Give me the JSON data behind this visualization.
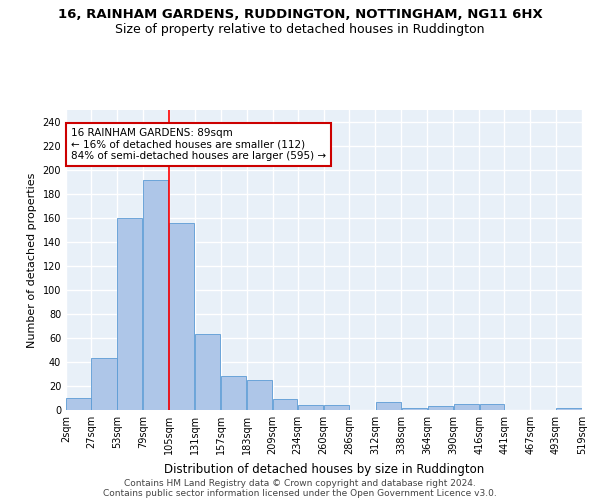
{
  "title": "16, RAINHAM GARDENS, RUDDINGTON, NOTTINGHAM, NG11 6HX",
  "subtitle": "Size of property relative to detached houses in Ruddington",
  "xlabel": "Distribution of detached houses by size in Ruddington",
  "ylabel": "Number of detached properties",
  "bar_color": "#aec6e8",
  "bar_edge_color": "#5b9bd5",
  "background_color": "#e8f0f8",
  "grid_color": "#ffffff",
  "annotation_box_color": "#cc0000",
  "annotation_line1": "16 RAINHAM GARDENS: 89sqm",
  "annotation_line2": "← 16% of detached houses are smaller (112)",
  "annotation_line3": "84% of semi-detached houses are larger (595) →",
  "bin_edges": [
    2,
    27,
    53,
    79,
    105,
    131,
    157,
    183,
    209,
    234,
    260,
    286,
    312,
    338,
    364,
    390,
    416,
    441,
    467,
    493,
    519
  ],
  "bin_labels": [
    "2sqm",
    "27sqm",
    "53sqm",
    "79sqm",
    "105sqm",
    "131sqm",
    "157sqm",
    "183sqm",
    "209sqm",
    "234sqm",
    "260sqm",
    "286sqm",
    "312sqm",
    "338sqm",
    "364sqm",
    "390sqm",
    "416sqm",
    "441sqm",
    "467sqm",
    "493sqm",
    "519sqm"
  ],
  "bar_heights": [
    10,
    43,
    160,
    192,
    156,
    63,
    28,
    25,
    9,
    4,
    4,
    0,
    7,
    2,
    3,
    5,
    5,
    0,
    0,
    2
  ],
  "ylim": [
    0,
    250
  ],
  "yticks": [
    0,
    20,
    40,
    60,
    80,
    100,
    120,
    140,
    160,
    180,
    200,
    220,
    240
  ],
  "footer_line1": "Contains HM Land Registry data © Crown copyright and database right 2024.",
  "footer_line2": "Contains public sector information licensed under the Open Government Licence v3.0.",
  "title_fontsize": 9.5,
  "subtitle_fontsize": 9,
  "xlabel_fontsize": 8.5,
  "ylabel_fontsize": 8,
  "tick_fontsize": 7,
  "annotation_fontsize": 7.5,
  "footer_fontsize": 6.5
}
